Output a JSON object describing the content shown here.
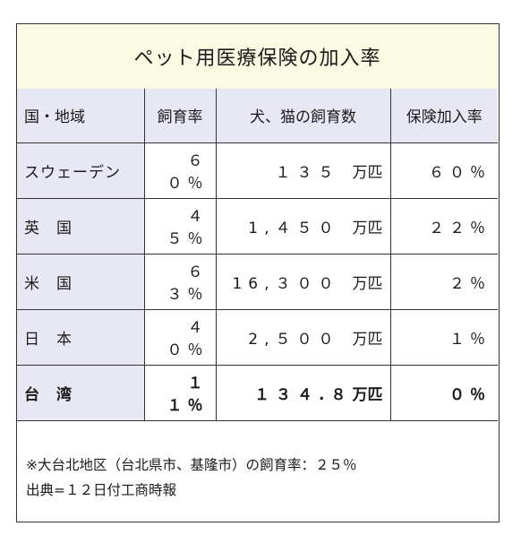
{
  "title": "ペット用医療保険の加入率",
  "headers": [
    "国・地域",
    "飼育率",
    "犬、猫の飼育数",
    "保険加入率"
  ],
  "rows": [
    {
      "country": "スウェーデン",
      "rate": "６０％",
      "count": "１３５",
      "unit": "万匹",
      "insurance": "６０％"
    },
    {
      "country": "英　国",
      "rate": "４５％",
      "count": "1,４５０",
      "unit": "万匹",
      "insurance": "２２％"
    },
    {
      "country": "米　国",
      "rate": "６３％",
      "count": "16,３００",
      "unit": "万匹",
      "insurance": "２％"
    },
    {
      "country": "日　本",
      "rate": "４０％",
      "count": "2,５００",
      "unit": "万匹",
      "insurance": "１％"
    },
    {
      "country": "台　湾",
      "rate": "１１％",
      "count": "１３４.８",
      "unit": "万匹",
      "insurance": "０％"
    }
  ],
  "notes": [
    "※大台北地区（台北県市、基隆市）の飼育率：２５％",
    "出典=１２日付工商時報"
  ]
}
